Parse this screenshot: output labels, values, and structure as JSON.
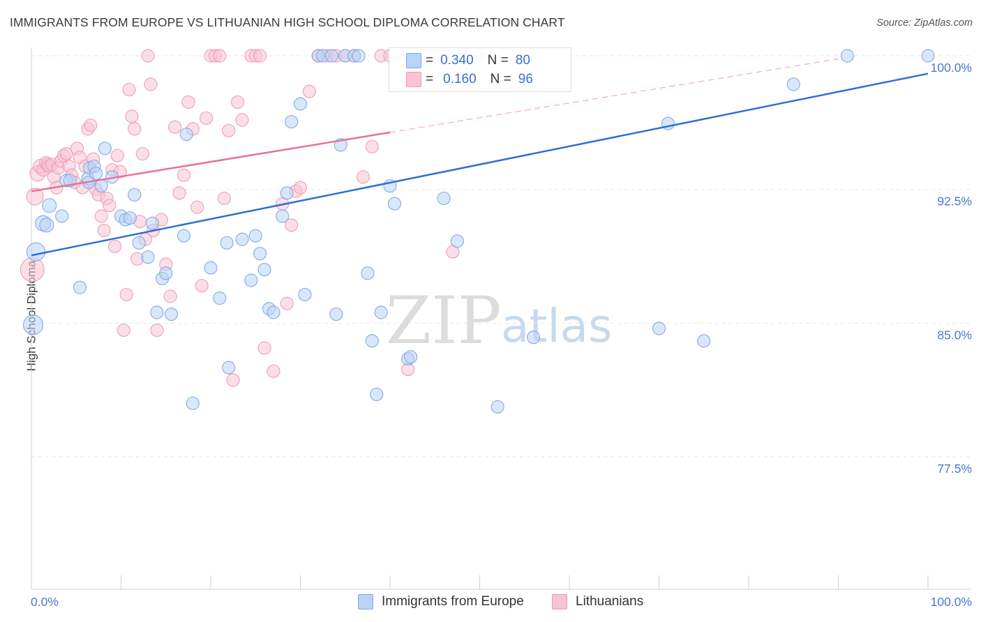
{
  "title": "IMMIGRANTS FROM EUROPE VS LITHUANIAN HIGH SCHOOL DIPLOMA CORRELATION CHART",
  "source": "Source: ZipAtlas.com",
  "watermark": {
    "zip": "ZIP",
    "atlas": "atlas"
  },
  "legend": {
    "rows": [
      {
        "r_label": "R =",
        "r_value": "0.340",
        "n_label": "N =",
        "n_value": "80"
      },
      {
        "r_label": "R =",
        "r_value": "0.160",
        "n_label": "N =",
        "n_value": "96"
      }
    ]
  },
  "bottom_legend": [
    {
      "label": "Immigrants from Europe"
    },
    {
      "label": "Lithuanians"
    }
  ],
  "colors": {
    "blue_fill": "#b9d3f5",
    "blue_stroke": "#7fa8e6",
    "blue_line": "#2f6fd0",
    "pink_fill": "#f8c4d3",
    "pink_stroke": "#ee9ab6",
    "pink_line": "#e8709a",
    "tick_label": "#4a79d0",
    "grid": "#e6e6e6"
  },
  "chart_data": {
    "type": "scatter",
    "title": "IMMIGRANTS FROM EUROPE VS LITHUANIAN HIGH SCHOOL DIPLOMA CORRELATION CHART",
    "xlabel": "",
    "ylabel": "High School Diploma",
    "xlim": [
      0,
      100
    ],
    "ylim": [
      70,
      101
    ],
    "x_tick_labels": [
      "0.0%",
      "100.0%"
    ],
    "y_ticks": [
      77.5,
      85.0,
      92.5,
      100.0
    ],
    "y_tick_labels": [
      "77.5%",
      "85.0%",
      "92.5%",
      "100.0%"
    ],
    "grid": true,
    "series": [
      {
        "name": "Immigrants from Europe",
        "color": "#7fa8e6",
        "trend": {
          "x": [
            0,
            100
          ],
          "y": [
            88.8,
            99.0
          ]
        },
        "points": [
          [
            0.2,
            84.9,
            14
          ],
          [
            0.5,
            89.0,
            13
          ],
          [
            1.3,
            90.6,
            11
          ],
          [
            1.7,
            90.5,
            10
          ],
          [
            2.0,
            91.6,
            10
          ],
          [
            3.4,
            91.0,
            9
          ],
          [
            3.9,
            93.0,
            9
          ],
          [
            4.3,
            93.0,
            9
          ],
          [
            5.4,
            87.0,
            9
          ],
          [
            6.3,
            93.1,
            9
          ],
          [
            6.4,
            92.9,
            9
          ],
          [
            6.5,
            93.7,
            9
          ],
          [
            7.0,
            93.8,
            9
          ],
          [
            7.2,
            93.4,
            9
          ],
          [
            7.8,
            92.7,
            9
          ],
          [
            8.2,
            94.8,
            9
          ],
          [
            9.0,
            93.2,
            9
          ],
          [
            10.0,
            91.0,
            9
          ],
          [
            10.5,
            90.8,
            9
          ],
          [
            11.0,
            90.9,
            9
          ],
          [
            11.5,
            92.2,
            9
          ],
          [
            12.0,
            89.5,
            9
          ],
          [
            13.0,
            88.7,
            9
          ],
          [
            13.5,
            90.6,
            9
          ],
          [
            14.0,
            85.6,
            9
          ],
          [
            14.6,
            87.5,
            9
          ],
          [
            15.0,
            87.8,
            9
          ],
          [
            15.6,
            85.5,
            9
          ],
          [
            17.0,
            89.9,
            9
          ],
          [
            17.3,
            95.6,
            9
          ],
          [
            18.0,
            80.5,
            9
          ],
          [
            20.0,
            88.1,
            9
          ],
          [
            21.0,
            86.4,
            9
          ],
          [
            21.8,
            89.5,
            9
          ],
          [
            22.0,
            82.5,
            9
          ],
          [
            23.5,
            89.7,
            9
          ],
          [
            24.5,
            87.4,
            9
          ],
          [
            25.0,
            89.9,
            9
          ],
          [
            25.5,
            88.9,
            9
          ],
          [
            26.0,
            88.0,
            9
          ],
          [
            26.5,
            85.8,
            9
          ],
          [
            27.0,
            85.6,
            9
          ],
          [
            28.0,
            91.0,
            9
          ],
          [
            28.5,
            92.3,
            9
          ],
          [
            29.0,
            96.3,
            9
          ],
          [
            30.0,
            97.3,
            9
          ],
          [
            30.5,
            86.6,
            9
          ],
          [
            32.0,
            100.0,
            9
          ],
          [
            32.5,
            100.0,
            9
          ],
          [
            33.5,
            100.0,
            9
          ],
          [
            34.0,
            85.5,
            9
          ],
          [
            34.5,
            95.0,
            9
          ],
          [
            35.0,
            100.0,
            9
          ],
          [
            36.0,
            100.0,
            9
          ],
          [
            36.5,
            100.0,
            9
          ],
          [
            37.5,
            87.8,
            9
          ],
          [
            38.0,
            84.0,
            9
          ],
          [
            38.5,
            81.0,
            9
          ],
          [
            39.0,
            85.6,
            9
          ],
          [
            40.0,
            92.7,
            9
          ],
          [
            40.5,
            91.7,
            9
          ],
          [
            41.0,
            100.0,
            9
          ],
          [
            42.0,
            83.0,
            9
          ],
          [
            42.3,
            83.1,
            9
          ],
          [
            43.5,
            100.0,
            9
          ],
          [
            44.5,
            100.0,
            9
          ],
          [
            45.0,
            100.0,
            9
          ],
          [
            46.0,
            92.0,
            9
          ],
          [
            46.5,
            100.0,
            9
          ],
          [
            47.5,
            89.6,
            9
          ],
          [
            48.0,
            100.0,
            9
          ],
          [
            50.0,
            100.0,
            9
          ],
          [
            52.0,
            80.3,
            9
          ],
          [
            56.0,
            84.2,
            9
          ],
          [
            70.0,
            84.7,
            9
          ],
          [
            71.0,
            96.2,
            9
          ],
          [
            75.0,
            84.0,
            9
          ],
          [
            85.0,
            98.4,
            9
          ],
          [
            91.0,
            100.0,
            9
          ],
          [
            100.0,
            100.0,
            9
          ]
        ]
      },
      {
        "name": "Lithuanians",
        "color": "#ee9ab6",
        "trend": {
          "x": [
            0,
            40
          ],
          "y": [
            92.4,
            95.7
          ]
        },
        "points": [
          [
            0.1,
            88.0,
            17
          ],
          [
            0.4,
            92.1,
            12
          ],
          [
            0.7,
            93.4,
            11
          ],
          [
            1.0,
            93.8,
            10
          ],
          [
            1.3,
            93.6,
            9
          ],
          [
            1.6,
            94.0,
            9
          ],
          [
            1.8,
            93.9,
            9
          ],
          [
            2.0,
            93.8,
            9
          ],
          [
            2.3,
            93.9,
            9
          ],
          [
            2.5,
            93.2,
            9
          ],
          [
            2.8,
            92.6,
            9
          ],
          [
            3.0,
            93.7,
            9
          ],
          [
            3.3,
            94.1,
            9
          ],
          [
            3.6,
            94.4,
            9
          ],
          [
            3.9,
            94.5,
            9
          ],
          [
            4.2,
            93.8,
            9
          ],
          [
            4.5,
            93.3,
            9
          ],
          [
            4.8,
            92.9,
            9
          ],
          [
            5.1,
            94.8,
            9
          ],
          [
            5.4,
            94.3,
            9
          ],
          [
            5.7,
            92.6,
            9
          ],
          [
            6.0,
            93.8,
            9
          ],
          [
            6.3,
            95.9,
            9
          ],
          [
            6.6,
            96.1,
            9
          ],
          [
            6.9,
            94.2,
            9
          ],
          [
            7.2,
            92.5,
            9
          ],
          [
            7.5,
            92.2,
            9
          ],
          [
            7.8,
            91.0,
            9
          ],
          [
            8.1,
            90.2,
            9
          ],
          [
            8.4,
            92.0,
            9
          ],
          [
            8.7,
            91.6,
            9
          ],
          [
            9.0,
            93.6,
            9
          ],
          [
            9.3,
            89.3,
            9
          ],
          [
            9.6,
            94.4,
            9
          ],
          [
            9.9,
            93.5,
            9
          ],
          [
            10.3,
            84.6,
            9
          ],
          [
            10.6,
            86.6,
            9
          ],
          [
            10.9,
            98.1,
            9
          ],
          [
            11.2,
            96.6,
            9
          ],
          [
            11.5,
            95.9,
            9
          ],
          [
            11.8,
            88.6,
            9
          ],
          [
            12.1,
            90.7,
            9
          ],
          [
            12.4,
            94.5,
            9
          ],
          [
            12.7,
            89.7,
            9
          ],
          [
            13.0,
            100.0,
            9
          ],
          [
            13.3,
            98.4,
            9
          ],
          [
            13.6,
            90.2,
            9
          ],
          [
            14.0,
            84.6,
            9
          ],
          [
            14.5,
            90.8,
            9
          ],
          [
            15.0,
            88.3,
            9
          ],
          [
            15.5,
            86.5,
            9
          ],
          [
            16.0,
            96.0,
            9
          ],
          [
            16.5,
            92.3,
            9
          ],
          [
            17.0,
            93.3,
            9
          ],
          [
            17.5,
            97.4,
            9
          ],
          [
            18.0,
            95.9,
            9
          ],
          [
            18.5,
            91.5,
            9
          ],
          [
            19.0,
            87.1,
            9
          ],
          [
            19.5,
            96.5,
            9
          ],
          [
            20.0,
            100.0,
            9
          ],
          [
            20.5,
            100.0,
            9
          ],
          [
            21.0,
            100.0,
            9
          ],
          [
            21.5,
            92.0,
            9
          ],
          [
            22.0,
            95.8,
            9
          ],
          [
            22.5,
            81.8,
            9
          ],
          [
            23.0,
            97.4,
            9
          ],
          [
            23.5,
            96.4,
            9
          ],
          [
            24.5,
            100.0,
            9
          ],
          [
            25.0,
            100.0,
            9
          ],
          [
            25.5,
            100.0,
            9
          ],
          [
            26.0,
            83.6,
            9
          ],
          [
            27.0,
            82.3,
            9
          ],
          [
            28.0,
            91.7,
            9
          ],
          [
            28.5,
            86.1,
            9
          ],
          [
            29.0,
            90.5,
            9
          ],
          [
            29.5,
            92.4,
            9
          ],
          [
            30.0,
            92.6,
            9
          ],
          [
            31.0,
            98.0,
            9
          ],
          [
            32.0,
            100.0,
            9
          ],
          [
            33.0,
            100.0,
            9
          ],
          [
            34.0,
            100.0,
            9
          ],
          [
            35.0,
            100.0,
            9
          ],
          [
            36.0,
            100.0,
            9
          ],
          [
            37.0,
            93.2,
            9
          ],
          [
            38.0,
            94.9,
            9
          ],
          [
            39.0,
            100.0,
            9
          ],
          [
            40.0,
            100.0,
            9
          ],
          [
            41.0,
            100.0,
            9
          ],
          [
            42.0,
            82.4,
            9
          ],
          [
            43.0,
            100.0,
            9
          ],
          [
            44.0,
            100.0,
            9
          ],
          [
            45.0,
            100.0,
            9
          ],
          [
            46.0,
            100.0,
            9
          ],
          [
            47.0,
            89.0,
            9
          ],
          [
            48.0,
            100.0,
            9
          ],
          [
            50.0,
            100.0,
            9
          ]
        ]
      }
    ]
  }
}
